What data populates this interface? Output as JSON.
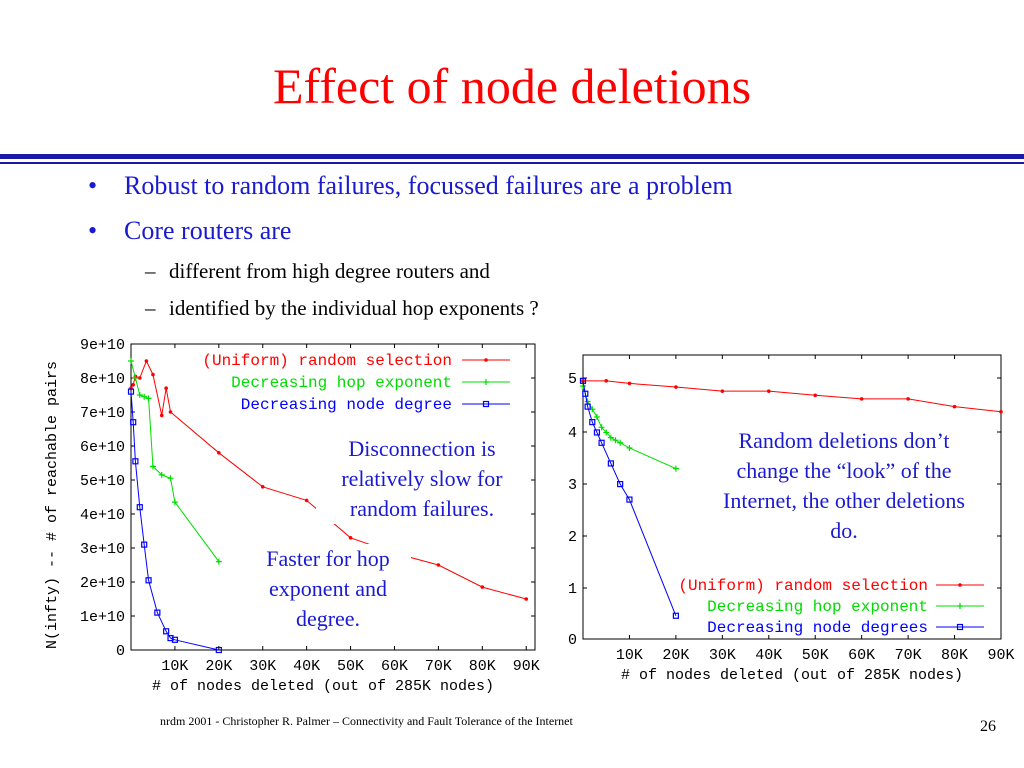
{
  "slide": {
    "title": "Effect of node deletions",
    "bullets": [
      "Robust to random failures, focussed failures are a problem",
      "Core routers are"
    ],
    "sub_bullets": [
      "different from high degree routers and",
      "identified by the individual hop exponents ?"
    ],
    "annotations": {
      "left_top": "Disconnection is relatively slow for random failures.",
      "left_bottom": "Faster for hop exponent and degree.",
      "right": "Random deletions don’t change the “look” of the Internet, the other deletions do."
    },
    "footer": "nrdm 2001 - Christopher R. Palmer – Connectivity and Fault Tolerance of the Internet",
    "page_number": "26"
  },
  "colors": {
    "title": "#ff0000",
    "text": "#1a1ad0",
    "red": "#ff0000",
    "green": "#00dd00",
    "blue": "#0000ff"
  },
  "chart_data": [
    {
      "type": "line",
      "xlabel": "# of nodes deleted (out of 285K nodes)",
      "ylabel": "N(infty) -- # of reachable pairs",
      "x_tick_labels": [
        "10K",
        "20K",
        "30K",
        "40K",
        "50K",
        "60K",
        "70K",
        "80K",
        "90K"
      ],
      "y_tick_labels": [
        "0",
        "1e+10",
        "2e+10",
        "3e+10",
        "4e+10",
        "5e+10",
        "6e+10",
        "7e+10",
        "8e+10",
        "9e+10"
      ],
      "xlim": [
        0,
        92000
      ],
      "ylim": [
        0,
        90000000000.0
      ],
      "legend_position": "top-right",
      "series": [
        {
          "name": "(Uniform) random selection",
          "color": "#ff0000",
          "marker": "dot",
          "x": [
            0,
            500,
            1000,
            2000,
            3500,
            5000,
            7000,
            8000,
            9000,
            20000,
            30000,
            40000,
            50000,
            60000,
            70000,
            80000,
            90000
          ],
          "y": [
            77000000000.0,
            78000000000.0,
            80500000000.0,
            80000000000.0,
            85000000000.0,
            81000000000.0,
            69000000000.0,
            77000000000.0,
            70000000000.0,
            58000000000.0,
            48000000000.0,
            44000000000.0,
            33000000000.0,
            28500000000.0,
            25000000000.0,
            18500000000.0,
            15000000000.0
          ]
        },
        {
          "name": "Decreasing hop exponent",
          "color": "#00dd00",
          "marker": "plus",
          "x": [
            0,
            1000,
            2000,
            3000,
            4000,
            5000,
            7000,
            9000,
            10000,
            20000
          ],
          "y": [
            85000000000.0,
            80000000000.0,
            75000000000.0,
            74500000000.0,
            74000000000.0,
            54000000000.0,
            51500000000.0,
            50500000000.0,
            43500000000.0,
            26000000000.0
          ]
        },
        {
          "name": "Decreasing node degree",
          "color": "#0000ff",
          "marker": "square",
          "x": [
            0,
            500,
            1000,
            2000,
            3000,
            4000,
            6000,
            8000,
            9000,
            10000,
            20000
          ],
          "y": [
            76000000000.0,
            67000000000.0,
            55500000000.0,
            42000000000.0,
            31000000000.0,
            20500000000.0,
            11000000000.0,
            5500000000.0,
            3500000000.0,
            3000000000.0,
            0
          ]
        }
      ]
    },
    {
      "type": "line",
      "xlabel": "# of nodes deleted (out of 285K nodes)",
      "x_tick_labels": [
        "10K",
        "20K",
        "30K",
        "40K",
        "50K",
        "60K",
        "70K",
        "80K",
        "90K"
      ],
      "y_tick_labels": [
        "0",
        "1",
        "2",
        "3",
        "4",
        "5"
      ],
      "xlim": [
        0,
        90000
      ],
      "ylim": [
        0,
        5.5
      ],
      "legend_position": "bottom-right",
      "series": [
        {
          "name": "(Uniform) random selection",
          "color": "#ff0000",
          "marker": "dot",
          "x": [
            0,
            5000,
            10000,
            20000,
            30000,
            40000,
            50000,
            60000,
            70000,
            80000,
            90000
          ],
          "y": [
            5.0,
            5.0,
            4.95,
            4.88,
            4.8,
            4.8,
            4.72,
            4.65,
            4.65,
            4.5,
            4.4
          ]
        },
        {
          "name": "Decreasing hop exponent",
          "color": "#00dd00",
          "marker": "plus",
          "x": [
            0,
            1000,
            2000,
            3000,
            4000,
            5000,
            6000,
            7000,
            8000,
            10000,
            20000
          ],
          "y": [
            4.9,
            4.6,
            4.45,
            4.3,
            4.1,
            4.0,
            3.9,
            3.85,
            3.8,
            3.7,
            3.3
          ]
        },
        {
          "name": "Decreasing node degrees",
          "color": "#0000ff",
          "marker": "square",
          "x": [
            0,
            500,
            1000,
            2000,
            3000,
            4000,
            6000,
            8000,
            10000,
            20000
          ],
          "y": [
            5.0,
            4.75,
            4.5,
            4.2,
            4.0,
            3.8,
            3.4,
            3.0,
            2.7,
            0.45
          ]
        }
      ]
    }
  ]
}
